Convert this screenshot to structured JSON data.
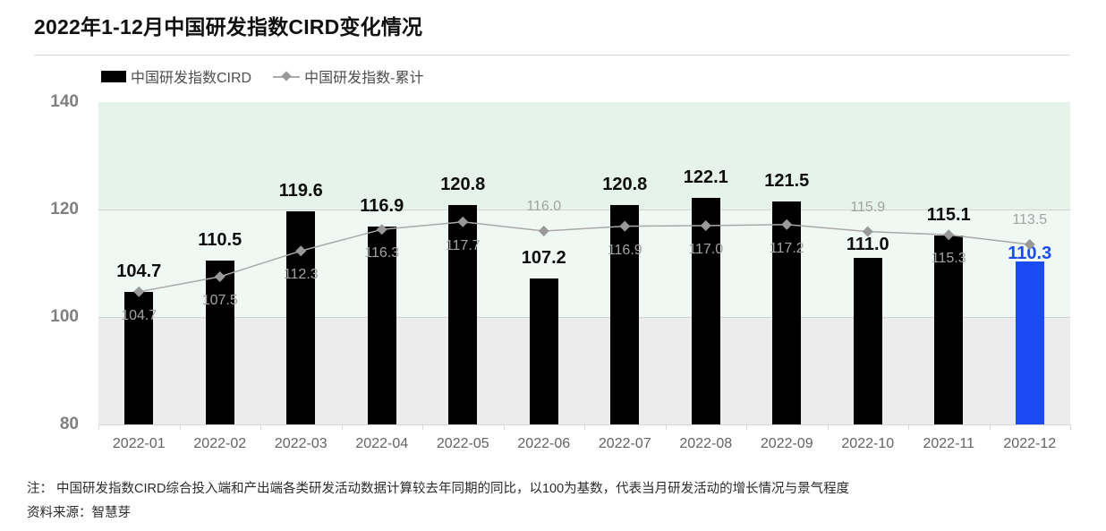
{
  "title": "2022年1-12月中国研发指数CIRD变化情况",
  "legend": {
    "bar_label": "中国研发指数CIRD",
    "line_label": "中国研发指数-累计"
  },
  "footnote": "注： 中国研发指数CIRD综合投入端和产出端各类研发活动数据计算较去年同期的同比，以100为基数，代表当月研发活动的增长情况与景气程度",
  "source": "资料来源：智慧芽",
  "chart_data": {
    "type": "bar",
    "title": "2022年1-12月中国研发指数CIRD变化情况",
    "categories": [
      "2022-01",
      "2022-02",
      "2022-03",
      "2022-04",
      "2022-05",
      "2022-06",
      "2022-07",
      "2022-08",
      "2022-09",
      "2022-10",
      "2022-11",
      "2022-12"
    ],
    "series": [
      {
        "name": "中国研发指数CIRD",
        "type": "bar",
        "values": [
          104.7,
          110.5,
          119.6,
          116.9,
          120.8,
          107.2,
          120.8,
          122.1,
          121.5,
          111.0,
          115.1,
          110.3
        ]
      },
      {
        "name": "中国研发指数-累计",
        "type": "line",
        "values": [
          104.7,
          107.5,
          112.3,
          116.3,
          117.7,
          116.0,
          116.9,
          117.0,
          117.2,
          115.9,
          115.3,
          113.5
        ],
        "label_above_indices": [
          5,
          9,
          11
        ]
      }
    ],
    "ylim": [
      80,
      140
    ],
    "y_ticks": [
      140,
      120,
      100,
      80
    ],
    "gridlines": [
      120,
      100
    ],
    "highlight_index": 11,
    "legend_position": "top-left",
    "grid": "horizontal-only",
    "bands": [
      {
        "from": 120,
        "to": 140,
        "color": "#e5f3eb"
      },
      {
        "from": 100,
        "to": 120,
        "color": "#eff8f3"
      },
      {
        "from": 80,
        "to": 100,
        "color": "#ececec"
      }
    ],
    "colors": {
      "bar": "#000000",
      "bar_highlight": "#1b4bf2",
      "bar_label": "#0d0d0d",
      "bar_label_highlight": "#1b4bf2",
      "line": "#a9a9a9",
      "marker": "#999999",
      "line_label": "#a3a3a3",
      "gridline": "#d2d2d2",
      "axis": "#d9d9d9",
      "y_label": "#7f7f7f",
      "x_label": "#636363"
    }
  }
}
